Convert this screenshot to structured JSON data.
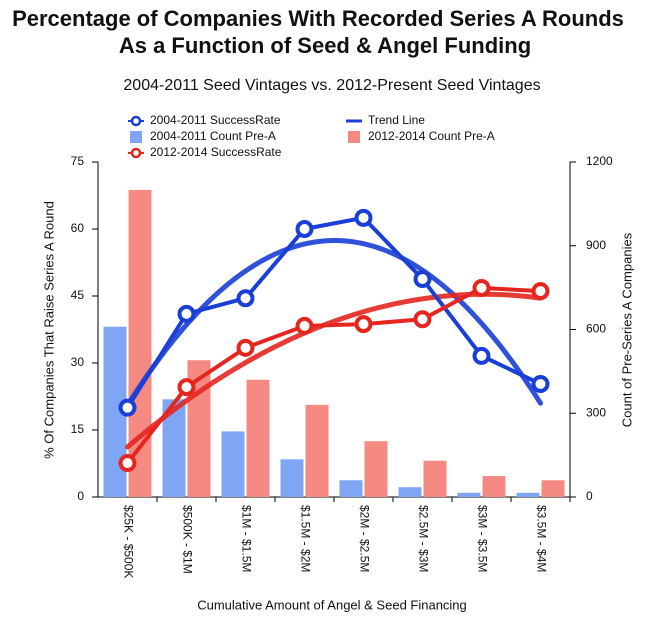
{
  "chart_data": {
    "type": "bar-line",
    "title": "Percentage of Companies With Recorded Series A Rounds",
    "title_line2": "As a Function of Seed & Angel Funding",
    "subtitle": "2004-2011 Seed Vintages vs. 2012-Present Seed Vintages",
    "x_label": "Cumulative Amount of Angel & Seed Financing",
    "y_label": "% Of Companies That Raise Series A Round",
    "y2_label": "Count of Pre-Series A Companies",
    "categories": [
      "$25K - $500K",
      "$500K - $1M",
      "$1M - $1.5M",
      "$1.5M - $2M",
      "$2M - $2.5M",
      "$2.5M - $3M",
      "$3M - $3.5M",
      "$3.5M - $4M"
    ],
    "series": [
      {
        "name": "2004-2011 SuccessRate",
        "color": "#1a3fd6",
        "kind": "line",
        "values": [
          20,
          41,
          44.5,
          60,
          62.5,
          48.8,
          31.6,
          25.3
        ]
      },
      {
        "name": "2004-2011 Count Pre-A",
        "color": "#7fa6f5",
        "kind": "bar",
        "axis": "y2",
        "values": [
          610,
          350,
          235,
          135,
          60,
          35,
          15,
          15
        ]
      },
      {
        "name": "2012-2014 SuccessRate",
        "color": "#e5261f",
        "kind": "line",
        "values": [
          7.6,
          24.6,
          33.4,
          38.3,
          38.7,
          39.8,
          46.8,
          46.1
        ]
      },
      {
        "name": "2012-2014 Count Pre-A",
        "color": "#f58a82",
        "kind": "bar",
        "axis": "y2",
        "values": [
          1100,
          490,
          420,
          330,
          200,
          130,
          75,
          60
        ]
      }
    ],
    "trend_line": {
      "name": "Trend Line",
      "color": "#1a3fd6"
    },
    "ylim": [
      0,
      75
    ],
    "yticks": [
      0,
      15,
      30,
      45,
      60,
      75
    ],
    "y2lim": [
      0,
      1200
    ],
    "y2ticks": [
      0,
      300,
      600,
      900,
      1200
    ]
  }
}
